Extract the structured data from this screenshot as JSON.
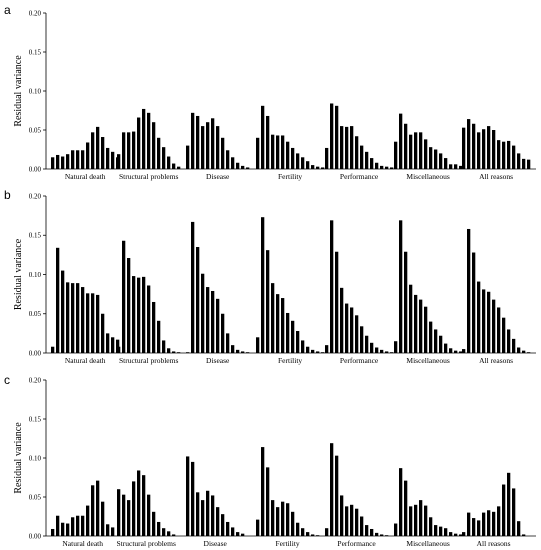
{
  "chart_data": [
    {
      "type": "bar",
      "panel": "a",
      "ylabel": "Residual variance",
      "ylim": [
        0,
        0.2
      ],
      "yticks": [
        "0.00",
        "0.05",
        "0.10",
        "0.15",
        "0.20"
      ],
      "categories": [
        "Natural death",
        "Structural problems",
        "Disease",
        "Fertility",
        "Performance",
        "Miscellaneous",
        "All reasons"
      ],
      "groups": [
        [
          0.015,
          0.018,
          0.016,
          0.019,
          0.024,
          0.024,
          0.024,
          0.034,
          0.047,
          0.054,
          0.041,
          0.027,
          0.022,
          0.015
        ],
        [
          0.019,
          0.047,
          0.047,
          0.048,
          0.066,
          0.077,
          0.072,
          0.06,
          0.04,
          0.028,
          0.016,
          0.007,
          0.003
        ],
        [
          0.03,
          0.072,
          0.068,
          0.055,
          0.06,
          0.065,
          0.055,
          0.04,
          0.024,
          0.015,
          0.008,
          0.004,
          0.002
        ],
        [
          0.04,
          0.081,
          0.068,
          0.044,
          0.043,
          0.043,
          0.035,
          0.027,
          0.02,
          0.015,
          0.01,
          0.005,
          0.003,
          0.002
        ],
        [
          0.027,
          0.084,
          0.081,
          0.055,
          0.054,
          0.055,
          0.042,
          0.03,
          0.022,
          0.014,
          0.008,
          0.004,
          0.003,
          0.002
        ],
        [
          0.035,
          0.071,
          0.058,
          0.044,
          0.047,
          0.047,
          0.038,
          0.028,
          0.025,
          0.02,
          0.014,
          0.006,
          0.006,
          0.004
        ],
        [
          0.053,
          0.064,
          0.058,
          0.047,
          0.051,
          0.055,
          0.05,
          0.037,
          0.035,
          0.036,
          0.03,
          0.02,
          0.013,
          0.012
        ]
      ]
    },
    {
      "type": "bar",
      "panel": "b",
      "ylabel": "Residual variance",
      "ylim": [
        0,
        0.2
      ],
      "yticks": [
        "0.00",
        "0.05",
        "0.10",
        "0.15",
        "0.20"
      ],
      "categories": [
        "Natural death",
        "Structural problems",
        "Disease",
        "Fertility",
        "Performance",
        "Miscellaneous",
        "All reasons"
      ],
      "groups": [
        [
          0.008,
          0.134,
          0.105,
          0.09,
          0.089,
          0.089,
          0.084,
          0.076,
          0.076,
          0.074,
          0.05,
          0.025,
          0.02,
          0.017
        ],
        [
          0.008,
          0.143,
          0.121,
          0.098,
          0.096,
          0.097,
          0.086,
          0.065,
          0.041,
          0.016,
          0.006,
          0.002,
          0.001
        ],
        [
          0.001,
          0.167,
          0.135,
          0.101,
          0.084,
          0.079,
          0.069,
          0.05,
          0.025,
          0.01,
          0.004,
          0.002,
          0.001
        ],
        [
          0.02,
          0.173,
          0.131,
          0.089,
          0.075,
          0.07,
          0.051,
          0.041,
          0.028,
          0.016,
          0.008,
          0.004,
          0.002,
          0.001
        ],
        [
          0.01,
          0.169,
          0.129,
          0.083,
          0.063,
          0.058,
          0.048,
          0.034,
          0.022,
          0.013,
          0.007,
          0.004,
          0.002,
          0.001
        ],
        [
          0.015,
          0.169,
          0.129,
          0.087,
          0.074,
          0.068,
          0.059,
          0.04,
          0.03,
          0.022,
          0.012,
          0.006,
          0.003,
          0.002
        ],
        [
          0.005,
          0.158,
          0.128,
          0.091,
          0.081,
          0.078,
          0.068,
          0.058,
          0.045,
          0.03,
          0.018,
          0.007,
          0.003,
          0.001
        ]
      ]
    },
    {
      "type": "bar",
      "panel": "c",
      "ylabel": "Residual variance",
      "ylim": [
        0,
        0.2
      ],
      "yticks": [
        "0.00",
        "0.05",
        "0.10",
        "0.15",
        "0.20"
      ],
      "categories": [
        "Natural death",
        "Structural problems",
        "Disease",
        "Fertility",
        "Performance",
        "Miscellaneous",
        "All reasons"
      ],
      "groups": [
        [
          0.009,
          0.026,
          0.017,
          0.016,
          0.024,
          0.026,
          0.026,
          0.039,
          0.065,
          0.071,
          0.044,
          0.015,
          0.011
        ],
        [
          0.06,
          0.053,
          0.046,
          0.07,
          0.084,
          0.078,
          0.053,
          0.031,
          0.018,
          0.01,
          0.006,
          0.002
        ],
        [
          0.102,
          0.095,
          0.056,
          0.046,
          0.058,
          0.052,
          0.037,
          0.028,
          0.018,
          0.011,
          0.005,
          0.003
        ],
        [
          0.021,
          0.114,
          0.088,
          0.046,
          0.037,
          0.044,
          0.042,
          0.031,
          0.017,
          0.01,
          0.005,
          0.002,
          0.001
        ],
        [
          0.01,
          0.119,
          0.103,
          0.052,
          0.038,
          0.04,
          0.035,
          0.025,
          0.014,
          0.009,
          0.004,
          0.002,
          0.001
        ],
        [
          0.016,
          0.087,
          0.071,
          0.038,
          0.04,
          0.046,
          0.039,
          0.024,
          0.014,
          0.012,
          0.01,
          0.005,
          0.003,
          0.002
        ],
        [
          0.005,
          0.03,
          0.023,
          0.02,
          0.03,
          0.033,
          0.031,
          0.038,
          0.066,
          0.081,
          0.061,
          0.019,
          0.002
        ]
      ]
    }
  ]
}
